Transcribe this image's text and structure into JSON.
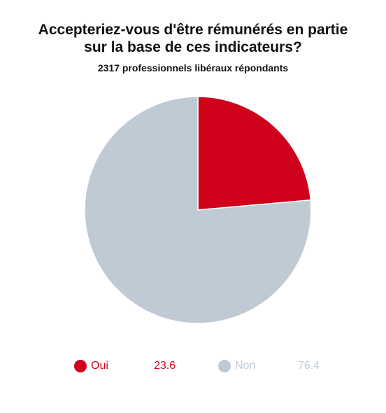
{
  "chart_data": {
    "type": "pie",
    "title": [
      "Accepteriez-vous d'être rémunérés en partie",
      "sur la base de ces indicateurs?"
    ],
    "subtitle": "2317 professionnels libéraux répondants",
    "slices": [
      {
        "label": "Oui",
        "value": 23.6,
        "value_text": "23.6",
        "color": "#d0021b"
      },
      {
        "label": "Non",
        "value": 76.4,
        "value_text": "76.4",
        "color": "#bfcad4"
      }
    ],
    "start_angle_deg": 0,
    "direction": "clockwise",
    "legend_position": "bottom"
  }
}
